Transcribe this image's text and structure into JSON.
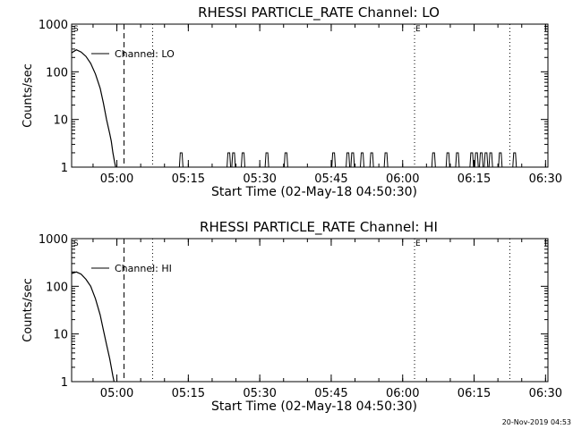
{
  "footer_timestamp": "20-Nov-2019 04:53",
  "chart_data": [
    {
      "type": "line",
      "title": "RHESSI PARTICLE_RATE Channel: LO",
      "xlabel": "Start Time (02-May-18 04:50:30)",
      "ylabel": "Counts/sec",
      "yscale": "log",
      "ylim": [
        1,
        1000
      ],
      "xlim_seconds": [
        0,
        6000
      ],
      "x_ticks": [
        {
          "t": 570,
          "label": "05:00"
        },
        {
          "t": 1470,
          "label": "05:15"
        },
        {
          "t": 2370,
          "label": "05:30"
        },
        {
          "t": 3270,
          "label": "05:45"
        },
        {
          "t": 4170,
          "label": "06:00"
        },
        {
          "t": 5070,
          "label": "06:15"
        },
        {
          "t": 5970,
          "label": "06:30"
        }
      ],
      "y_ticks": [
        {
          "v": 1,
          "label": "1"
        },
        {
          "v": 10,
          "label": "10"
        },
        {
          "v": 100,
          "label": "100"
        },
        {
          "v": 1000,
          "label": "1000"
        }
      ],
      "legend_location": "upper-left",
      "series": [
        {
          "name": "Channel: LO",
          "points": [
            [
              0,
              250
            ],
            [
              60,
              290
            ],
            [
              120,
              260
            ],
            [
              180,
              210
            ],
            [
              240,
              150
            ],
            [
              300,
              90
            ],
            [
              360,
              45
            ],
            [
              400,
              22
            ],
            [
              440,
              10
            ],
            [
              480,
              5
            ],
            [
              500,
              3.5
            ],
            [
              520,
              2
            ],
            [
              540,
              1.3
            ],
            [
              555,
              1
            ]
          ],
          "spikes": [
            1380,
            1980,
            2040,
            2160,
            2460,
            2700,
            3300,
            3480,
            3540,
            3660,
            3780,
            3960,
            4560,
            4740,
            4860,
            5040,
            5100,
            5160,
            5220,
            5280,
            5400,
            5580
          ]
        }
      ],
      "markers": [
        {
          "t": 660,
          "style": "dashed",
          "label": ""
        },
        {
          "t": 1020,
          "style": "dotted",
          "label": ""
        },
        {
          "t": 4320,
          "style": "dotted",
          "label": "E"
        },
        {
          "t": 5520,
          "style": "dotted",
          "label": ""
        }
      ],
      "corner_labels": {
        "start": "S",
        "end": "E"
      }
    },
    {
      "type": "line",
      "title": "RHESSI PARTICLE_RATE Channel: HI",
      "xlabel": "Start Time (02-May-18 04:50:30)",
      "ylabel": "Counts/sec",
      "yscale": "log",
      "ylim": [
        1,
        1000
      ],
      "xlim_seconds": [
        0,
        6000
      ],
      "x_ticks": [
        {
          "t": 570,
          "label": "05:00"
        },
        {
          "t": 1470,
          "label": "05:15"
        },
        {
          "t": 2370,
          "label": "05:30"
        },
        {
          "t": 3270,
          "label": "05:45"
        },
        {
          "t": 4170,
          "label": "06:00"
        },
        {
          "t": 5070,
          "label": "06:15"
        },
        {
          "t": 5970,
          "label": "06:30"
        }
      ],
      "y_ticks": [
        {
          "v": 1,
          "label": "1"
        },
        {
          "v": 10,
          "label": "10"
        },
        {
          "v": 100,
          "label": "100"
        },
        {
          "v": 1000,
          "label": "1000"
        }
      ],
      "legend_location": "upper-left",
      "series": [
        {
          "name": "Channel: HI",
          "points": [
            [
              0,
              185
            ],
            [
              60,
              200
            ],
            [
              120,
              180
            ],
            [
              180,
              140
            ],
            [
              240,
              100
            ],
            [
              300,
              55
            ],
            [
              360,
              25
            ],
            [
              400,
              12
            ],
            [
              440,
              6
            ],
            [
              480,
              3
            ],
            [
              500,
              2
            ],
            [
              520,
              1.3
            ],
            [
              535,
              1
            ]
          ],
          "spikes": []
        }
      ],
      "markers": [
        {
          "t": 660,
          "style": "dashed",
          "label": ""
        },
        {
          "t": 1020,
          "style": "dotted",
          "label": ""
        },
        {
          "t": 4320,
          "style": "dotted",
          "label": "E"
        },
        {
          "t": 5520,
          "style": "dotted",
          "label": ""
        }
      ],
      "corner_labels": {
        "start": "S",
        "end": "E"
      }
    }
  ]
}
